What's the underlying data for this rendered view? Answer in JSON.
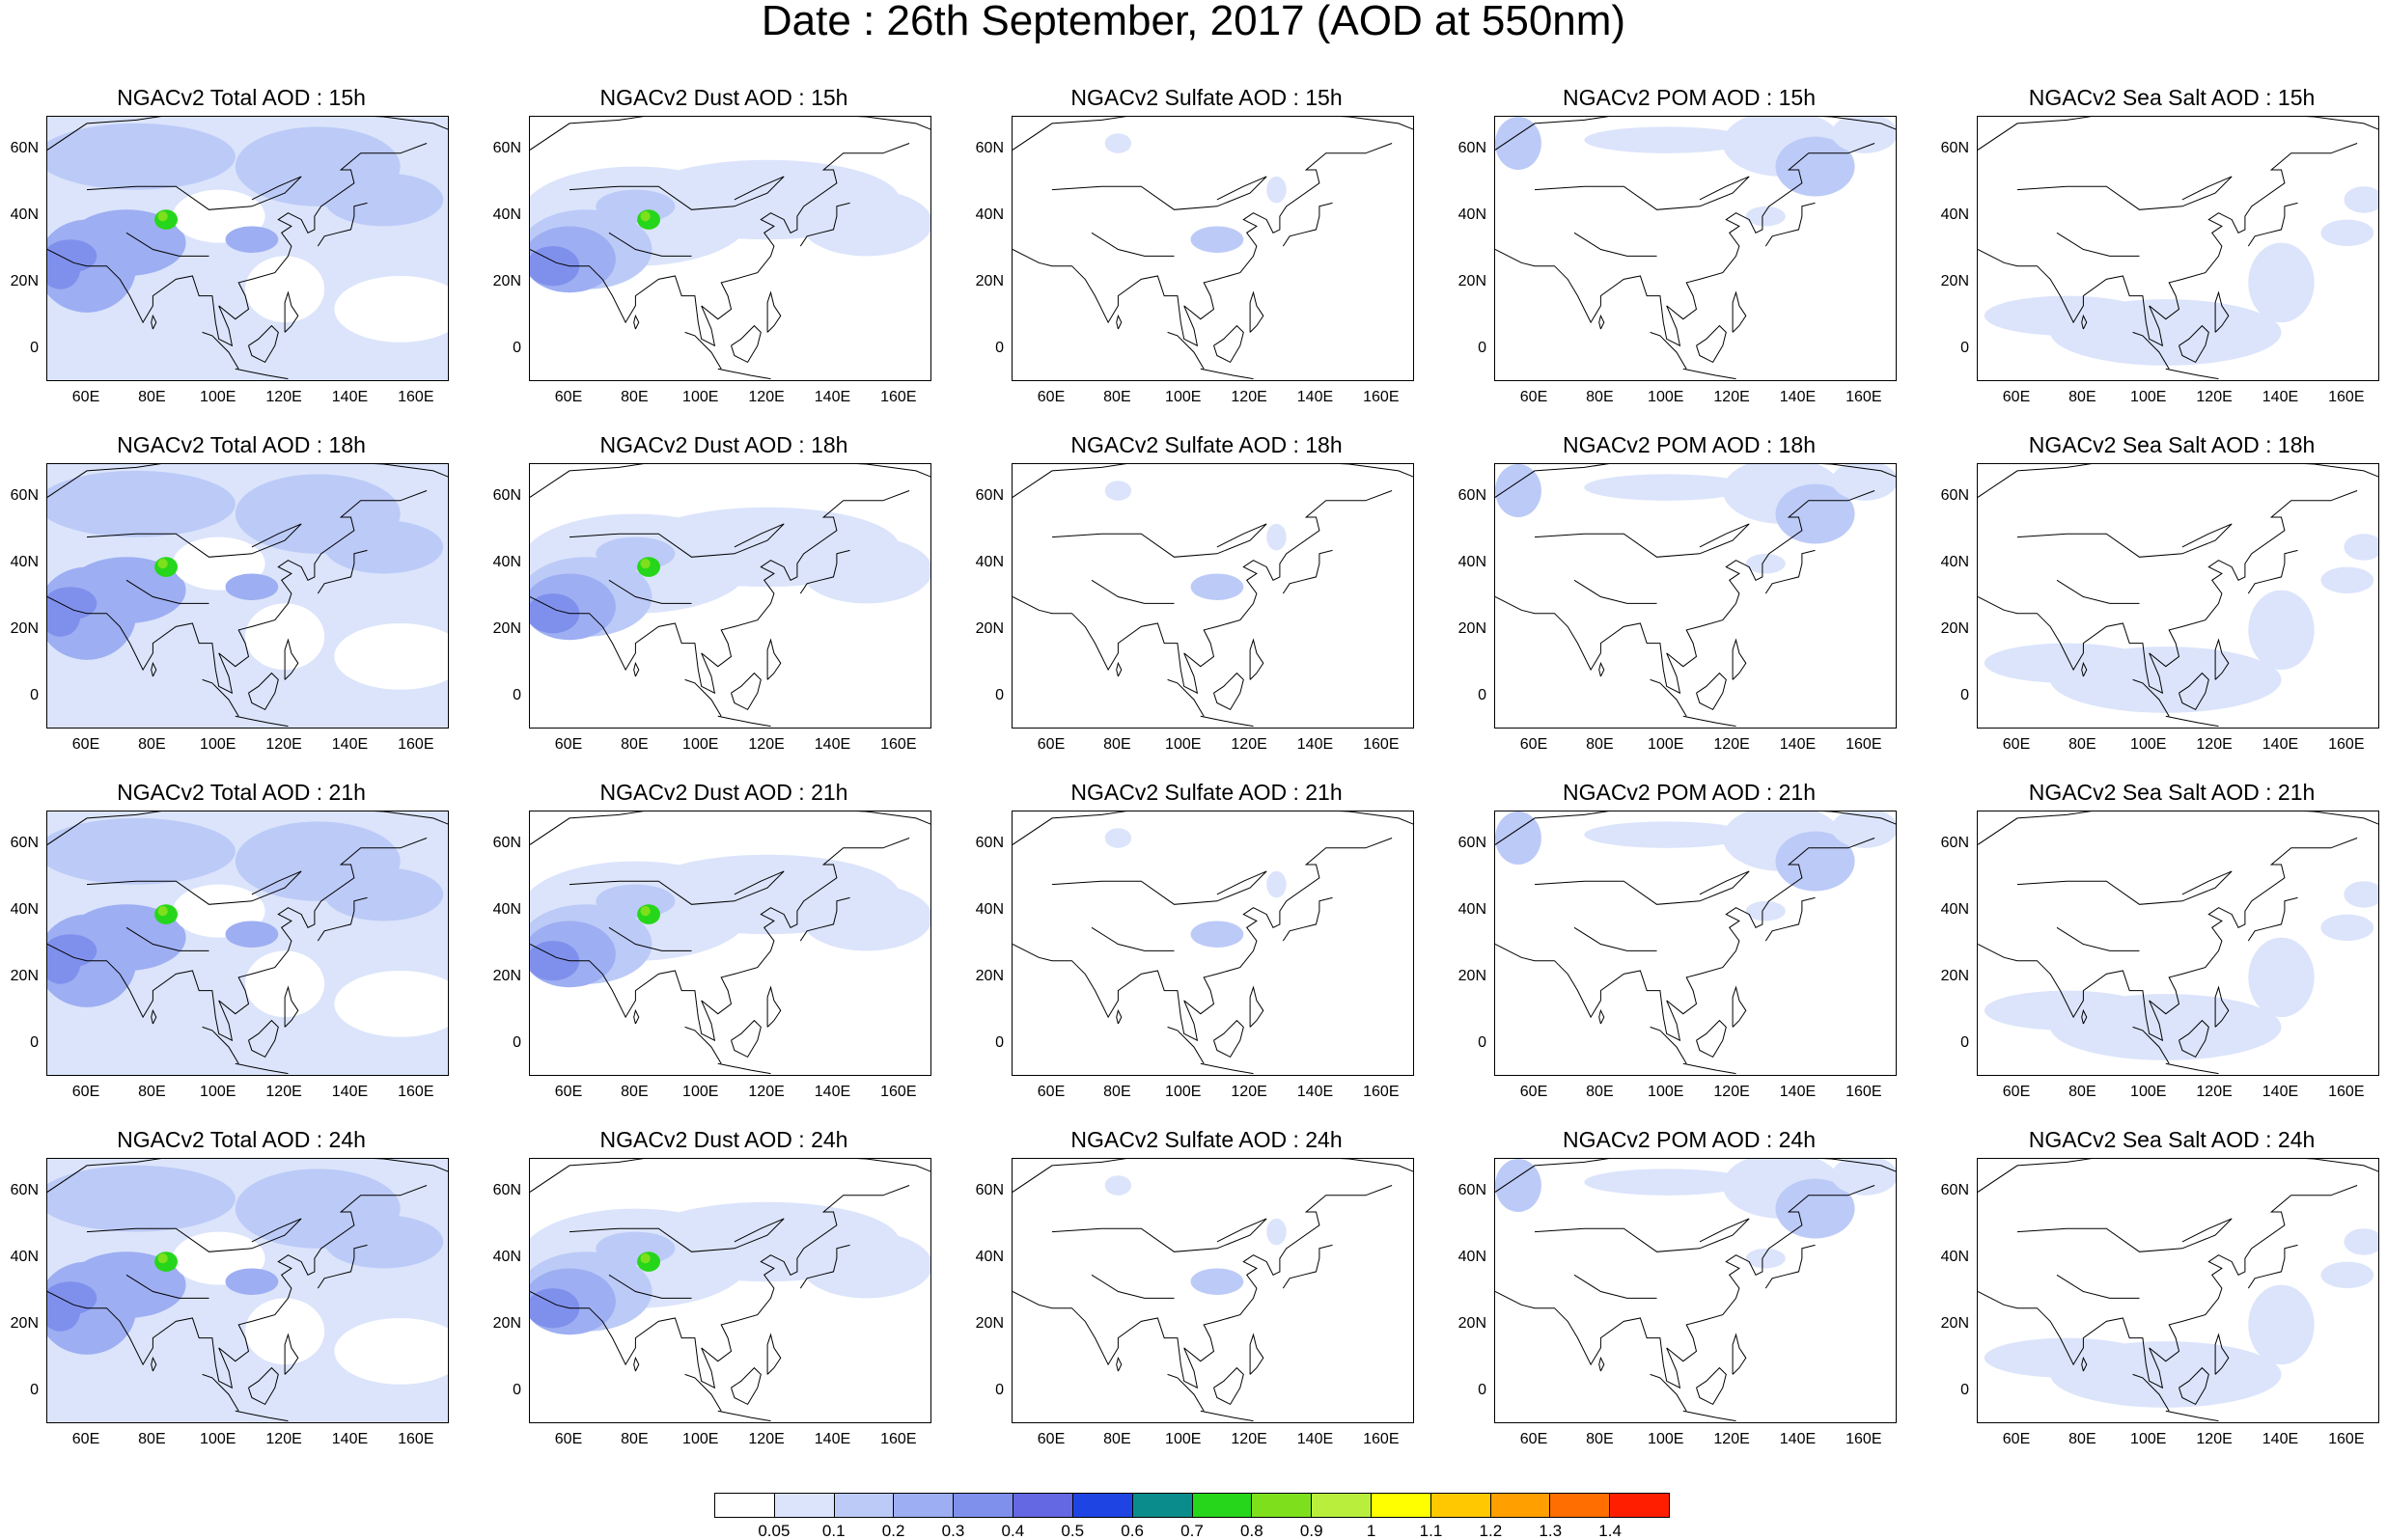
{
  "title": "Date : 26th September, 2017 (AOD at 550nm)",
  "x_ticks": [
    "60E",
    "80E",
    "100E",
    "120E",
    "140E",
    "160E"
  ],
  "y_ticks": [
    "60N",
    "40N",
    "20N",
    "0"
  ],
  "panels": [
    {
      "title": "NGACv2 Total AOD : 15h",
      "species": "total",
      "hour": "15h"
    },
    {
      "title": "NGACv2 Dust AOD : 15h",
      "species": "dust",
      "hour": "15h"
    },
    {
      "title": "NGACv2 Sulfate AOD : 15h",
      "species": "sulfate",
      "hour": "15h"
    },
    {
      "title": "NGACv2 POM AOD : 15h",
      "species": "pom",
      "hour": "15h"
    },
    {
      "title": "NGACv2 Sea Salt AOD : 15h",
      "species": "seasalt",
      "hour": "15h"
    },
    {
      "title": "NGACv2 Total AOD : 18h",
      "species": "total",
      "hour": "18h"
    },
    {
      "title": "NGACv2 Dust AOD : 18h",
      "species": "dust",
      "hour": "18h"
    },
    {
      "title": "NGACv2 Sulfate AOD : 18h",
      "species": "sulfate",
      "hour": "18h"
    },
    {
      "title": "NGACv2 POM AOD : 18h",
      "species": "pom",
      "hour": "18h"
    },
    {
      "title": "NGACv2 Sea Salt AOD : 18h",
      "species": "seasalt",
      "hour": "18h"
    },
    {
      "title": "NGACv2 Total AOD : 21h",
      "species": "total",
      "hour": "21h"
    },
    {
      "title": "NGACv2 Dust AOD : 21h",
      "species": "dust",
      "hour": "21h"
    },
    {
      "title": "NGACv2 Sulfate AOD : 21h",
      "species": "sulfate",
      "hour": "21h"
    },
    {
      "title": "NGACv2 POM AOD : 21h",
      "species": "pom",
      "hour": "21h"
    },
    {
      "title": "NGACv2 Sea Salt AOD : 21h",
      "species": "seasalt",
      "hour": "21h"
    },
    {
      "title": "NGACv2 Total AOD : 24h",
      "species": "total",
      "hour": "24h"
    },
    {
      "title": "NGACv2 Dust AOD : 24h",
      "species": "dust",
      "hour": "24h"
    },
    {
      "title": "NGACv2 Sulfate AOD : 24h",
      "species": "sulfate",
      "hour": "24h"
    },
    {
      "title": "NGACv2 POM AOD : 24h",
      "species": "pom",
      "hour": "24h"
    },
    {
      "title": "NGACv2 Sea Salt  AOD : 24h",
      "species": "seasalt",
      "hour": "24h"
    }
  ],
  "colorbar": {
    "labels": [
      "0.05",
      "0.1",
      "0.2",
      "0.3",
      "0.4",
      "0.5",
      "0.6",
      "0.7",
      "0.8",
      "0.9",
      "1",
      "1.1",
      "1.2",
      "1.3",
      "1.4"
    ],
    "colors": [
      "#ffffff",
      "#dbe4fb",
      "#bccaf7",
      "#9daef2",
      "#7f90ec",
      "#6468e3",
      "#1e45e4",
      "#0a8c8c",
      "#26d61a",
      "#7ee01c",
      "#b9ef3c",
      "#ffff00",
      "#ffc800",
      "#ffa000",
      "#ff6e00",
      "#ff1e00"
    ]
  }
}
